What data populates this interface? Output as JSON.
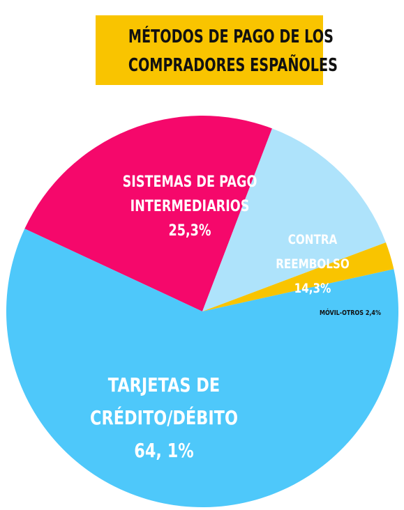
{
  "title": {
    "line1": "MÉTODOS DE PAGO DE LOS",
    "line2": "COMPRADORES ESPAÑOLES"
  },
  "colors": {
    "title_background": "#f9c400"
  },
  "chart_data": {
    "type": "pie",
    "title": "MÉTODOS DE PAGO DE LOS COMPRADORES ESPAÑOLES",
    "slices": [
      {
        "label_lines": [
          "SISTEMAS DE PAGO",
          "INTERMEDIARIOS"
        ],
        "value_label": "25,3%",
        "value": 25.3,
        "color": "#f5086b",
        "text_color": "#ffffff"
      },
      {
        "label_lines": [
          "CONTRA",
          "REEMBOLSO"
        ],
        "value_label": "14,3%",
        "value": 14.3,
        "color": "#aee3fb",
        "text_color": "#ffffff"
      },
      {
        "label_lines": [
          "MÓVIL-OTROS  2,4%"
        ],
        "value_label": "",
        "value": 2.4,
        "color": "#f9c400",
        "text_color": "#111111"
      },
      {
        "label_lines": [
          "TARJETAS DE",
          "CRÉDITO/DÉBITO"
        ],
        "value_label": "64, 1%",
        "value": 64.1,
        "color": "#4ec8fa",
        "text_color": "#ffffff"
      }
    ]
  }
}
